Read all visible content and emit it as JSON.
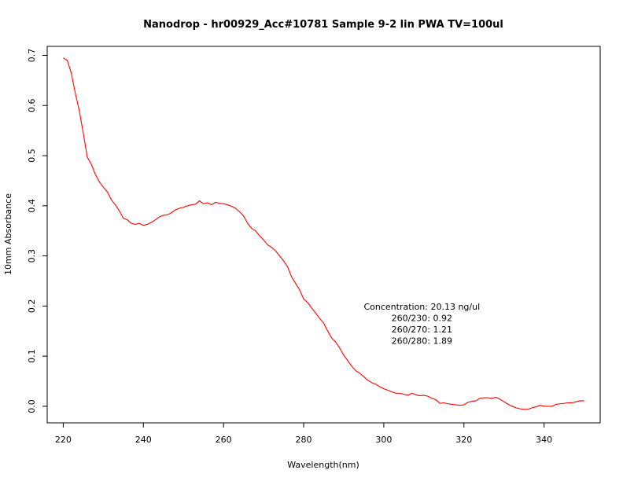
{
  "chart_data": {
    "type": "line",
    "title": "Nanodrop - hr00929_Acc#10781 Sample 9-2 lin PWA TV=100ul",
    "xlabel": "Wavelength(nm)",
    "ylabel": "10mm Absorbance",
    "xlim": [
      216,
      354
    ],
    "ylim": [
      -0.033,
      0.718
    ],
    "x_ticks": [
      220,
      240,
      260,
      280,
      300,
      320,
      340
    ],
    "y_ticks": [
      0.0,
      0.1,
      0.2,
      0.3,
      0.4,
      0.5,
      0.6,
      0.7
    ],
    "x_tick_labels": [
      "220",
      "240",
      "260",
      "280",
      "300",
      "320",
      "340"
    ],
    "y_tick_labels": [
      "0.0",
      "0.1",
      "0.2",
      "0.3",
      "0.4",
      "0.5",
      "0.6",
      "0.7"
    ],
    "grid": false,
    "series": [
      {
        "color": "#ff0000",
        "x": [
          220,
          221,
          222,
          223,
          224,
          225,
          226,
          227,
          228,
          229,
          230,
          231,
          232,
          233,
          234,
          235,
          236,
          237,
          238,
          239,
          240,
          241,
          242,
          243,
          244,
          245,
          246,
          247,
          248,
          249,
          250,
          251,
          252,
          253,
          254,
          255,
          256,
          257,
          258,
          259,
          260,
          261,
          262,
          263,
          264,
          265,
          266,
          267,
          268,
          269,
          270,
          271,
          272,
          273,
          274,
          275,
          276,
          277,
          278,
          279,
          280,
          281,
          282,
          283,
          284,
          285,
          286,
          287,
          288,
          289,
          290,
          291,
          292,
          293,
          294,
          295,
          296,
          297,
          298,
          299,
          300,
          301,
          302,
          303,
          304,
          305,
          306,
          307,
          308,
          309,
          310,
          311,
          312,
          313,
          314,
          315,
          316,
          317,
          318,
          319,
          320,
          321,
          322,
          323,
          324,
          325,
          326,
          327,
          328,
          329,
          330,
          331,
          332,
          333,
          334,
          335,
          336,
          337,
          338,
          339,
          340,
          341,
          342,
          343,
          344,
          345,
          346,
          347,
          348,
          349,
          350
        ],
        "y": [
          0.695,
          0.69,
          0.665,
          0.625,
          0.59,
          0.545,
          0.497,
          0.483,
          0.463,
          0.448,
          0.437,
          0.428,
          0.412,
          0.402,
          0.39,
          0.375,
          0.372,
          0.365,
          0.363,
          0.365,
          0.361,
          0.363,
          0.367,
          0.372,
          0.378,
          0.381,
          0.382,
          0.386,
          0.392,
          0.395,
          0.397,
          0.4,
          0.402,
          0.403,
          0.41,
          0.404,
          0.406,
          0.402,
          0.407,
          0.405,
          0.404,
          0.402,
          0.399,
          0.395,
          0.388,
          0.38,
          0.365,
          0.355,
          0.35,
          0.34,
          0.332,
          0.322,
          0.317,
          0.31,
          0.3,
          0.29,
          0.278,
          0.258,
          0.245,
          0.232,
          0.214,
          0.207,
          0.196,
          0.186,
          0.175,
          0.166,
          0.15,
          0.136,
          0.128,
          0.116,
          0.102,
          0.091,
          0.08,
          0.071,
          0.066,
          0.059,
          0.052,
          0.047,
          0.044,
          0.039,
          0.035,
          0.032,
          0.029,
          0.026,
          0.026,
          0.024,
          0.022,
          0.026,
          0.023,
          0.021,
          0.022,
          0.02,
          0.016,
          0.013,
          0.006,
          0.007,
          0.005,
          0.004,
          0.003,
          0.002,
          0.003,
          0.008,
          0.01,
          0.011,
          0.016,
          0.017,
          0.017,
          0.016,
          0.018,
          0.014,
          0.009,
          0.004,
          0.0,
          -0.003,
          -0.005,
          -0.006,
          -0.006,
          -0.003,
          -0.001,
          0.002,
          0.0,
          0.0,
          0.0,
          0.004,
          0.005,
          0.006,
          0.007,
          0.007,
          0.009,
          0.011,
          0.011
        ]
      }
    ],
    "annotation_lines": [
      "Concentration: 20.13 ng/ul",
      "260/230: 0.92",
      "260/270: 1.21",
      "260/280: 1.89"
    ],
    "annotation_x": 309.5
  }
}
